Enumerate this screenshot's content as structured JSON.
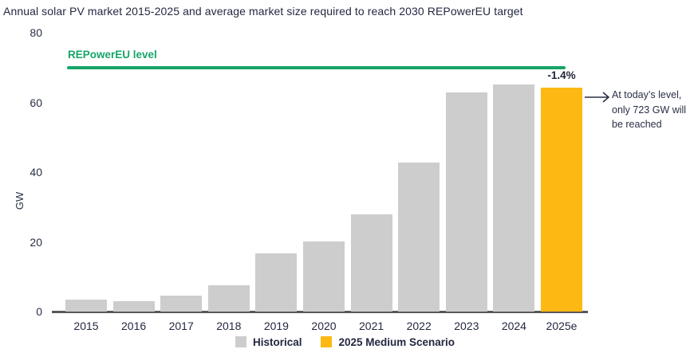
{
  "page": {
    "title": "Annual solar PV market 2015-2025 and average market size required to reach 2030 REPowerEU target"
  },
  "chart_data": {
    "type": "bar",
    "title": "Annual solar PV market 2015-2025 and average market size required to reach 2030 REPowerEU target",
    "xlabel": "",
    "ylabel": "GW",
    "ylim": [
      0,
      80
    ],
    "yticks": [
      80,
      60,
      40,
      20,
      0
    ],
    "grid": false,
    "legend_position": "bottom-center",
    "categories": [
      "2015",
      "2016",
      "2017",
      "2018",
      "2019",
      "2020",
      "2021",
      "2022",
      "2023",
      "2024",
      "2025e"
    ],
    "bars": [
      {
        "category": "2015",
        "value": 3.5,
        "series": "Historical"
      },
      {
        "category": "2016",
        "value": 3.0,
        "series": "Historical"
      },
      {
        "category": "2017",
        "value": 4.6,
        "series": "Historical"
      },
      {
        "category": "2018",
        "value": 7.6,
        "series": "Historical"
      },
      {
        "category": "2019",
        "value": 16.8,
        "series": "Historical"
      },
      {
        "category": "2020",
        "value": 20.2,
        "series": "Historical"
      },
      {
        "category": "2021",
        "value": 27.8,
        "series": "Historical"
      },
      {
        "category": "2022",
        "value": 42.8,
        "series": "Historical"
      },
      {
        "category": "2023",
        "value": 62.8,
        "series": "Historical"
      },
      {
        "category": "2024",
        "value": 65.1,
        "series": "Historical"
      },
      {
        "category": "2025e",
        "value": 64.2,
        "series": "2025 Medium Scenario"
      }
    ],
    "series": [
      {
        "name": "Historical",
        "values": [
          3.5,
          3.0,
          4.6,
          7.6,
          16.8,
          20.2,
          27.8,
          42.8,
          62.8,
          65.1
        ]
      },
      {
        "name": "2025 Medium Scenario",
        "values": [
          64.2
        ]
      }
    ],
    "reference_line": {
      "label": "REPowerEU level",
      "value": 70,
      "color": "#17a569"
    },
    "annotations": {
      "delta_label": "-1.4%",
      "bar_value_label": "64.2",
      "callout": {
        "lines": [
          "At today’s level,",
          "only 723 GW will",
          "be reached"
        ]
      }
    },
    "legend": [
      {
        "label": "Historical",
        "color": "#cdcdce"
      },
      {
        "label": "2025 Medium Scenario",
        "color": "#fdb813"
      }
    ],
    "colors": {
      "historical_bar": "#cdcdce",
      "scenario_bar": "#fdb813",
      "reference_line": "#17a569",
      "axis_line": "#58595b",
      "text": "#252a40",
      "bar_value_text": "#ffffff"
    }
  }
}
